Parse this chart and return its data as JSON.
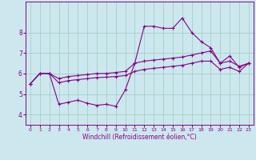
{
  "xlabel": "Windchill (Refroidissement éolien,°C)",
  "ylabel": "",
  "background_color": "#cce8ee",
  "line_color": "#880088",
  "grid_color": "#99ccbb",
  "xlim": [
    -0.5,
    23.5
  ],
  "ylim": [
    3.5,
    9.5
  ],
  "yticks": [
    4,
    5,
    6,
    7,
    8
  ],
  "xticks": [
    0,
    1,
    2,
    3,
    4,
    5,
    6,
    7,
    8,
    9,
    10,
    11,
    12,
    13,
    14,
    15,
    16,
    17,
    18,
    19,
    20,
    21,
    22,
    23
  ],
  "series1_x": [
    0,
    1,
    2,
    3,
    4,
    5,
    6,
    7,
    8,
    9,
    10,
    11,
    12,
    13,
    14,
    15,
    16,
    17,
    18,
    19,
    20,
    21,
    22,
    23
  ],
  "series1_y": [
    5.5,
    6.0,
    6.0,
    4.5,
    4.6,
    4.7,
    4.55,
    4.45,
    4.5,
    4.4,
    5.2,
    6.5,
    8.3,
    8.3,
    8.2,
    8.2,
    8.7,
    8.0,
    7.55,
    7.25,
    6.5,
    6.85,
    6.3,
    6.5
  ],
  "series2_x": [
    0,
    1,
    2,
    3,
    4,
    5,
    6,
    7,
    8,
    9,
    10,
    11,
    12,
    13,
    14,
    15,
    16,
    17,
    18,
    19,
    20,
    21,
    22,
    23
  ],
  "series2_y": [
    5.5,
    6.0,
    6.0,
    5.75,
    5.85,
    5.9,
    5.95,
    6.0,
    6.0,
    6.05,
    6.1,
    6.5,
    6.6,
    6.65,
    6.7,
    6.75,
    6.8,
    6.9,
    7.0,
    7.1,
    6.5,
    6.6,
    6.35,
    6.5
  ],
  "series3_x": [
    0,
    1,
    2,
    3,
    4,
    5,
    6,
    7,
    8,
    9,
    10,
    11,
    12,
    13,
    14,
    15,
    16,
    17,
    18,
    19,
    20,
    21,
    22,
    23
  ],
  "series3_y": [
    5.5,
    6.0,
    6.0,
    5.55,
    5.65,
    5.7,
    5.75,
    5.8,
    5.82,
    5.85,
    5.9,
    6.1,
    6.2,
    6.25,
    6.3,
    6.35,
    6.4,
    6.5,
    6.6,
    6.6,
    6.2,
    6.3,
    6.1,
    6.5
  ]
}
